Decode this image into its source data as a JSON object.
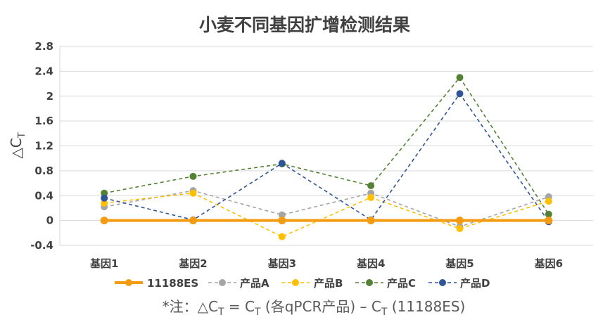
{
  "chart_data": {
    "type": "line",
    "title": "小麦不同基因扩增检测结果",
    "ylabel_main": "△C",
    "ylabel_sub": "T",
    "xlabel": "",
    "ylim": [
      -0.4,
      2.8
    ],
    "yticks": [
      -0.4,
      0,
      0.4,
      0.8,
      1.2,
      1.6,
      2,
      2.4,
      2.8
    ],
    "ytick_labels": [
      "-0.4",
      "0",
      "0.4",
      "0.8",
      "1.2",
      "1.6",
      "2",
      "2.4",
      "2.8"
    ],
    "grid": true,
    "legend_position": "bottom",
    "categories": [
      "基因1",
      "基因2",
      "基因3",
      "基因4",
      "基因5",
      "基因6"
    ],
    "series": [
      {
        "name": "11188ES",
        "color": "#F39C12",
        "style": "solid",
        "values": [
          0,
          0,
          0,
          0,
          0,
          0
        ]
      },
      {
        "name": "产品A",
        "color": "#A5A5A5",
        "style": "dashed",
        "values": [
          0.22,
          0.48,
          0.09,
          0.44,
          -0.1,
          0.38
        ]
      },
      {
        "name": "产品B",
        "color": "#FFC000",
        "style": "dashed",
        "values": [
          0.28,
          0.44,
          -0.26,
          0.37,
          -0.13,
          0.31
        ]
      },
      {
        "name": "产品C",
        "color": "#548235",
        "style": "dashed",
        "values": [
          0.44,
          0.71,
          0.91,
          0.56,
          2.3,
          0.1
        ]
      },
      {
        "name": "产品D",
        "color": "#2F5597",
        "style": "dashed",
        "values": [
          0.36,
          0.01,
          0.92,
          0.01,
          2.04,
          -0.02
        ]
      }
    ],
    "footnote_main": "*注：△C",
    "footnote_sub1": "T",
    "footnote_mid": " = C",
    "footnote_sub2": "T",
    "footnote_rest": " (各qPCR产品) – C",
    "footnote_sub3": "T",
    "footnote_end": " (11188ES)"
  }
}
